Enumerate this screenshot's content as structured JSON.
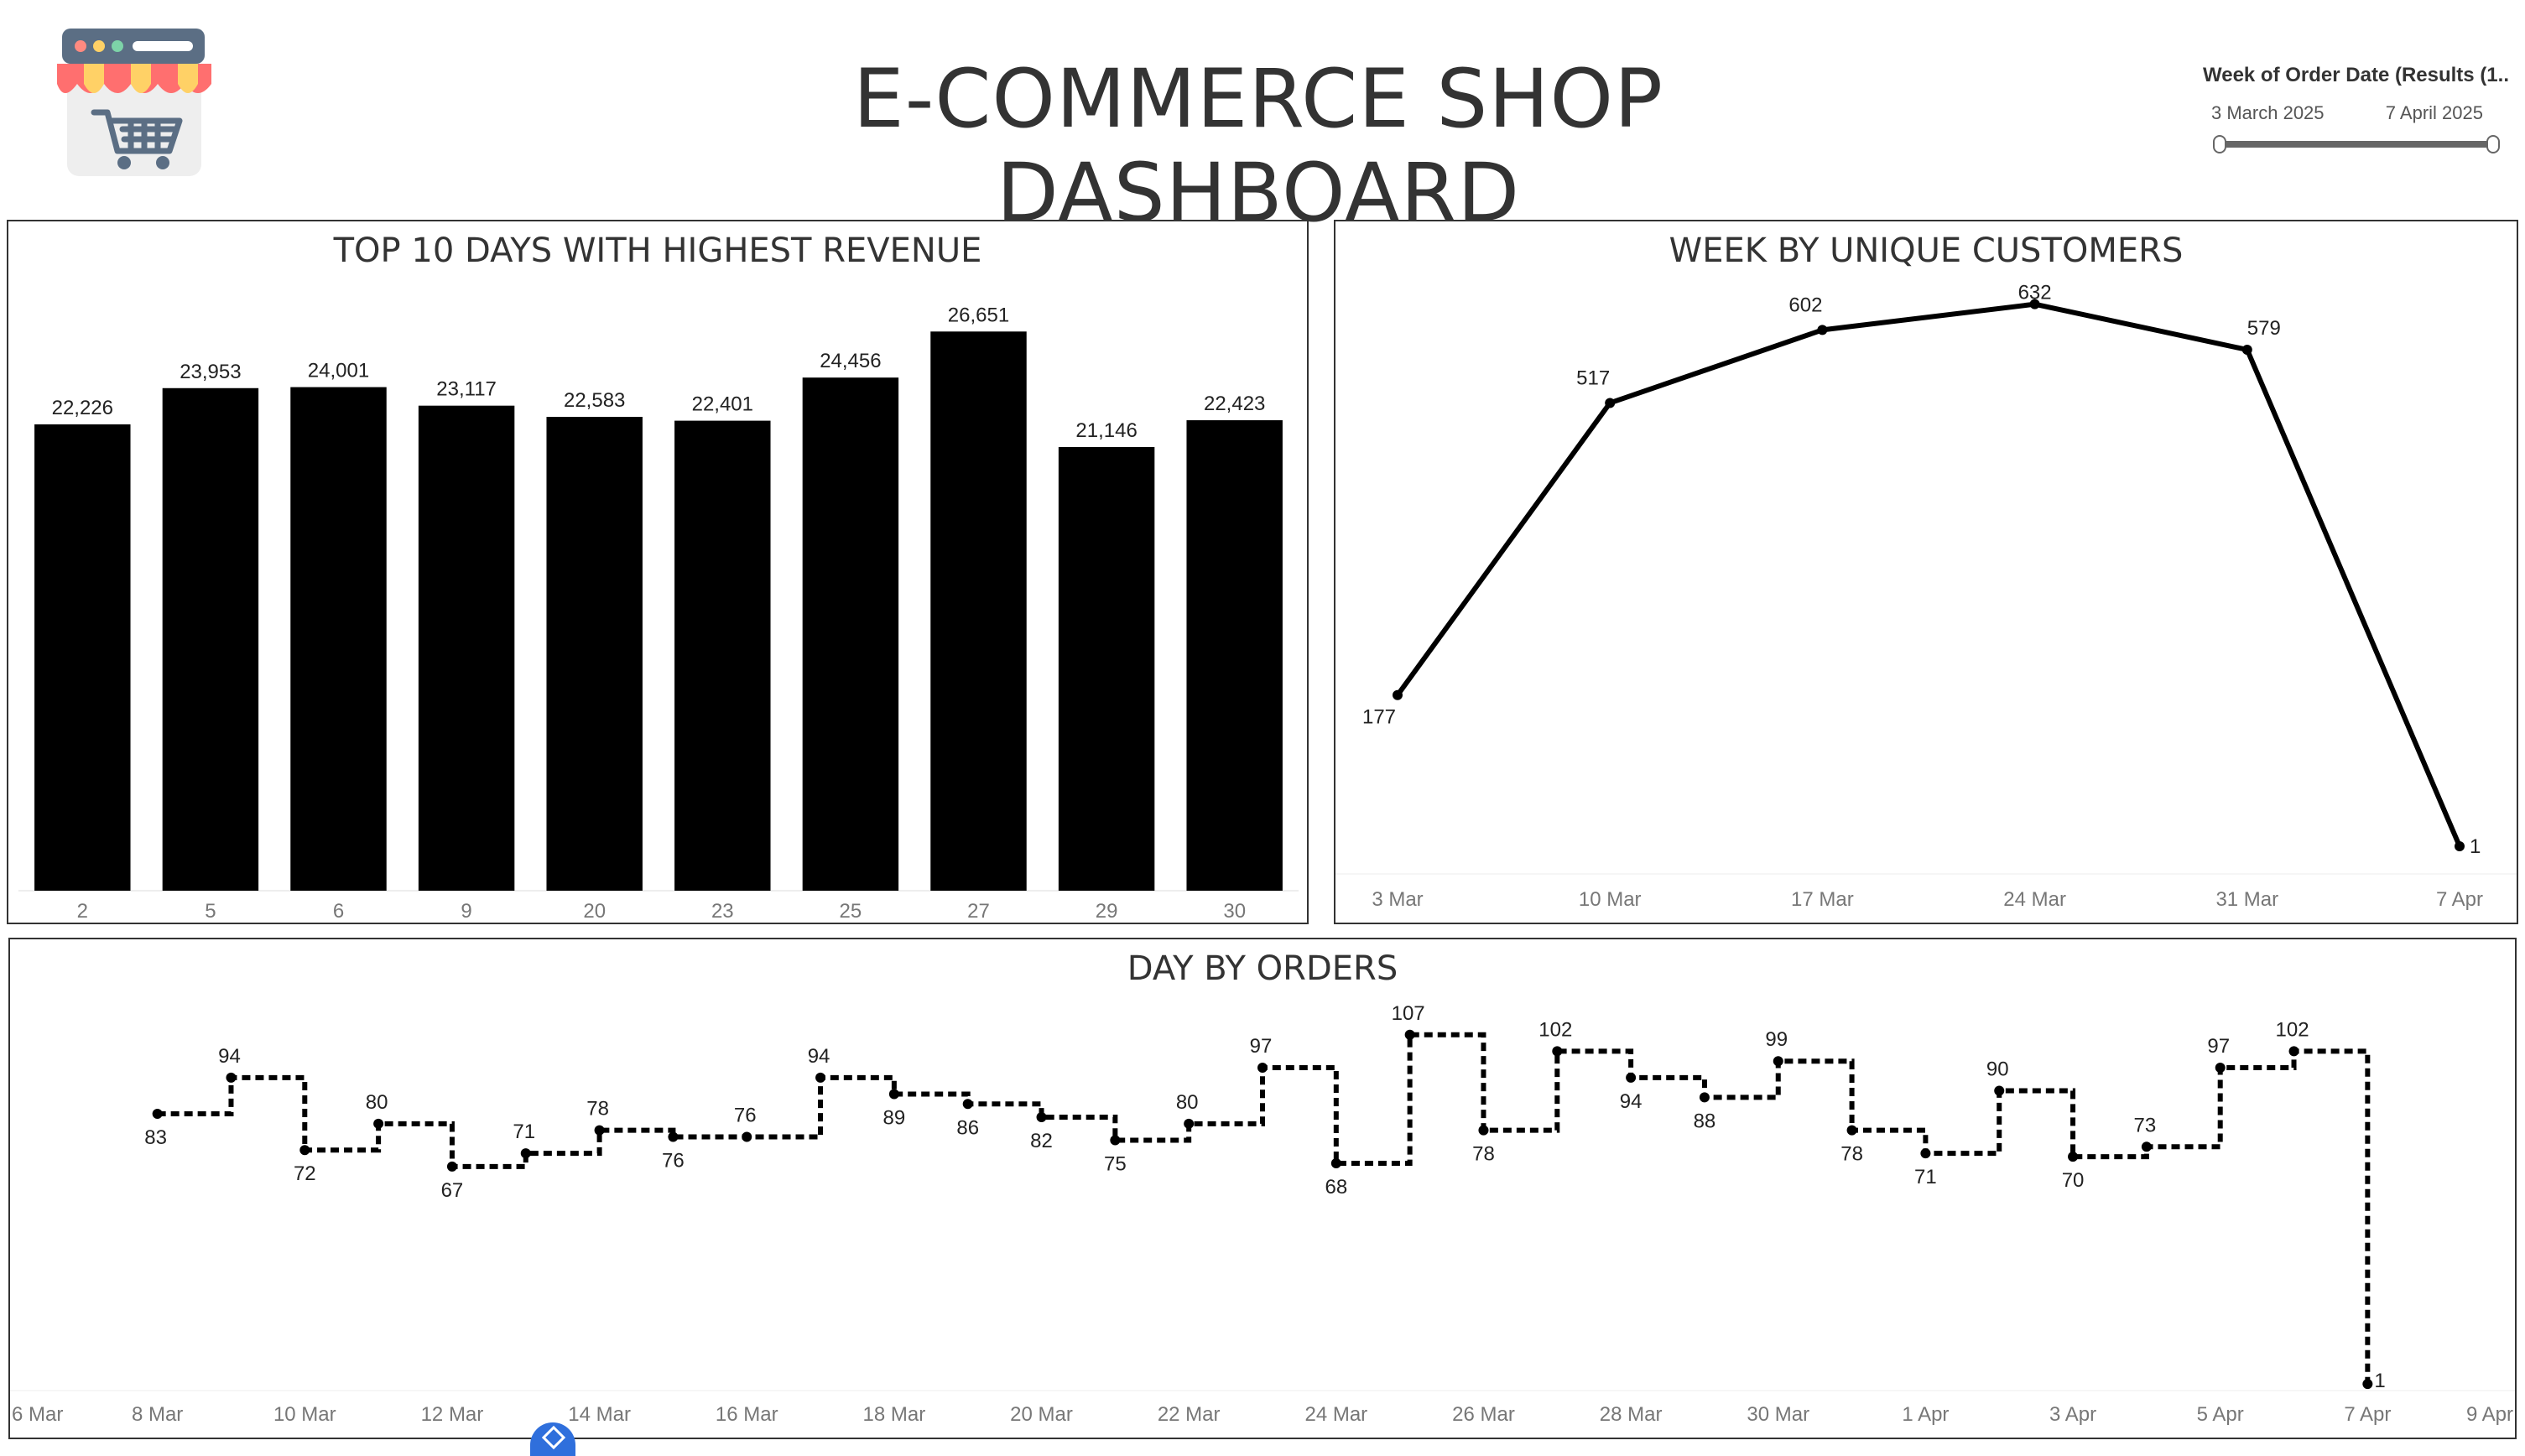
{
  "header": {
    "title": "E-COMMERCE SHOP DASHBOARD",
    "logo_icon": "shop-cart-icon"
  },
  "filter": {
    "title": "Week of Order Date (Results (1..",
    "start_label": "3 March 2025",
    "end_label": "7 April 2025"
  },
  "chart_data": [
    {
      "type": "bar",
      "title": "TOP 10 DAYS WITH HIGHEST REVENUE",
      "categories": [
        "2",
        "5",
        "6",
        "9",
        "20",
        "23",
        "25",
        "27",
        "29",
        "30"
      ],
      "values": [
        22226,
        23953,
        24001,
        23117,
        22583,
        22401,
        24456,
        26651,
        21146,
        22423
      ],
      "labels": [
        "22,226",
        "23,953",
        "24,001",
        "23,117",
        "22,583",
        "22,401",
        "24,456",
        "26,651",
        "21,146",
        "22,423"
      ],
      "ylim": [
        0,
        29500
      ],
      "grid": false,
      "color": "#000000"
    },
    {
      "type": "line",
      "title": "WEEK BY UNIQUE CUSTOMERS",
      "x": [
        "2025-03-03",
        "2025-03-10",
        "2025-03-17",
        "2025-03-24",
        "2025-03-31",
        "2025-04-07"
      ],
      "tick_labels": [
        "3 Mar",
        "10 Mar",
        "17 Mar",
        "24 Mar",
        "31 Mar",
        "7 Apr"
      ],
      "values": [
        177,
        517,
        602,
        632,
        579,
        1
      ],
      "ylim": [
        0,
        660
      ],
      "grid": false,
      "color": "#000000"
    },
    {
      "type": "line",
      "title": "DAY BY ORDERS",
      "line_style": "dashed step",
      "x": [
        "2025-03-08",
        "2025-03-09",
        "2025-03-10",
        "2025-03-11",
        "2025-03-12",
        "2025-03-13",
        "2025-03-14",
        "2025-03-15",
        "2025-03-16",
        "2025-03-17",
        "2025-03-18",
        "2025-03-19",
        "2025-03-20",
        "2025-03-21",
        "2025-03-22",
        "2025-03-23",
        "2025-03-24",
        "2025-03-25",
        "2025-03-26",
        "2025-03-27",
        "2025-03-28",
        "2025-03-29",
        "2025-03-30",
        "2025-03-31",
        "2025-04-01",
        "2025-04-02",
        "2025-04-03",
        "2025-04-04",
        "2025-04-05",
        "2025-04-06",
        "2025-04-07"
      ],
      "values": [
        83,
        94,
        72,
        80,
        67,
        71,
        78,
        76,
        76,
        94,
        89,
        86,
        82,
        75,
        80,
        97,
        68,
        107,
        78,
        102,
        94,
        88,
        99,
        78,
        71,
        90,
        70,
        73,
        97,
        102,
        1
      ],
      "x_range": [
        "2025-03-06",
        "2025-04-09"
      ],
      "tick_dates": [
        "2025-03-06",
        "2025-03-08",
        "2025-03-10",
        "2025-03-12",
        "2025-03-14",
        "2025-03-16",
        "2025-03-18",
        "2025-03-20",
        "2025-03-22",
        "2025-03-24",
        "2025-03-26",
        "2025-03-28",
        "2025-03-30",
        "2025-04-01",
        "2025-04-03",
        "2025-04-05",
        "2025-04-07",
        "2025-04-09"
      ],
      "tick_labels": [
        "6 Mar",
        "8 Mar",
        "10 Mar",
        "12 Mar",
        "14 Mar",
        "16 Mar",
        "18 Mar",
        "20 Mar",
        "22 Mar",
        "24 Mar",
        "26 Mar",
        "28 Mar",
        "30 Mar",
        "1 Apr",
        "3 Apr",
        "5 Apr",
        "7 Apr",
        "9 Apr"
      ],
      "ylim": [
        0,
        110
      ],
      "grid": false,
      "color": "#000000"
    }
  ]
}
